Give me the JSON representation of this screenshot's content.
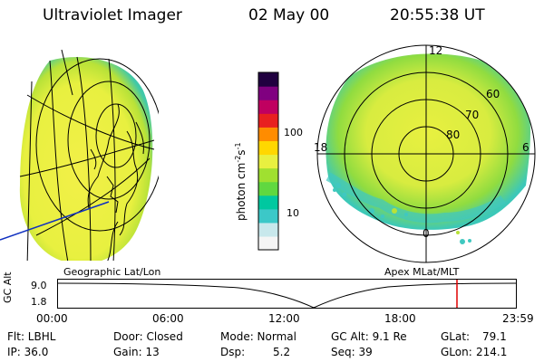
{
  "header": {
    "instrument": "Ultraviolet Imager",
    "date": "02 May 00",
    "time": "20:55:38 UT"
  },
  "left_panel": {
    "label": "Geographic Lat/Lon"
  },
  "right_panel": {
    "label": "Apex MLat/MLT",
    "mlt_labels": [
      "12",
      "18",
      "6",
      "0"
    ],
    "mlat_labels": [
      "60",
      "70",
      "80"
    ]
  },
  "colorbar": {
    "title": "photon cm",
    "title_sup1": "-2",
    "title_mid": "s",
    "title_sup2": "-1",
    "tick_labels": [
      "100",
      "10"
    ],
    "scale": "log",
    "colors": [
      "#f5f5f5",
      "#c8e8ec",
      "#3cc8c8",
      "#00c8a0",
      "#60d840",
      "#a0e030",
      "#e8f040",
      "#ffd700",
      "#ff8c00",
      "#e82020",
      "#c00060",
      "#800080",
      "#200040"
    ]
  },
  "orbit": {
    "axis_label": "GC Alt",
    "y_labels": [
      "9.0",
      "1.8"
    ],
    "x_labels": [
      "00:00",
      "06:00",
      "12:00",
      "18:00",
      "23:59"
    ],
    "current_time_fraction": 0.8715,
    "marker_color": "#e00000"
  },
  "footer": {
    "flt": "Flt: LBHL",
    "ip": "IP: 36.0",
    "door": "Door: Closed",
    "gain": "Gain: 13",
    "mode": "Mode: Normal",
    "dsp_label": "Dsp:",
    "dsp_value": "5.2",
    "gcalt": "GC Alt: 9.1 Re",
    "seq": "Seq: 39",
    "glat_label": "GLat:",
    "glat_value": "79.1",
    "glon_label": "GLon:",
    "glon_value": "214.1"
  }
}
